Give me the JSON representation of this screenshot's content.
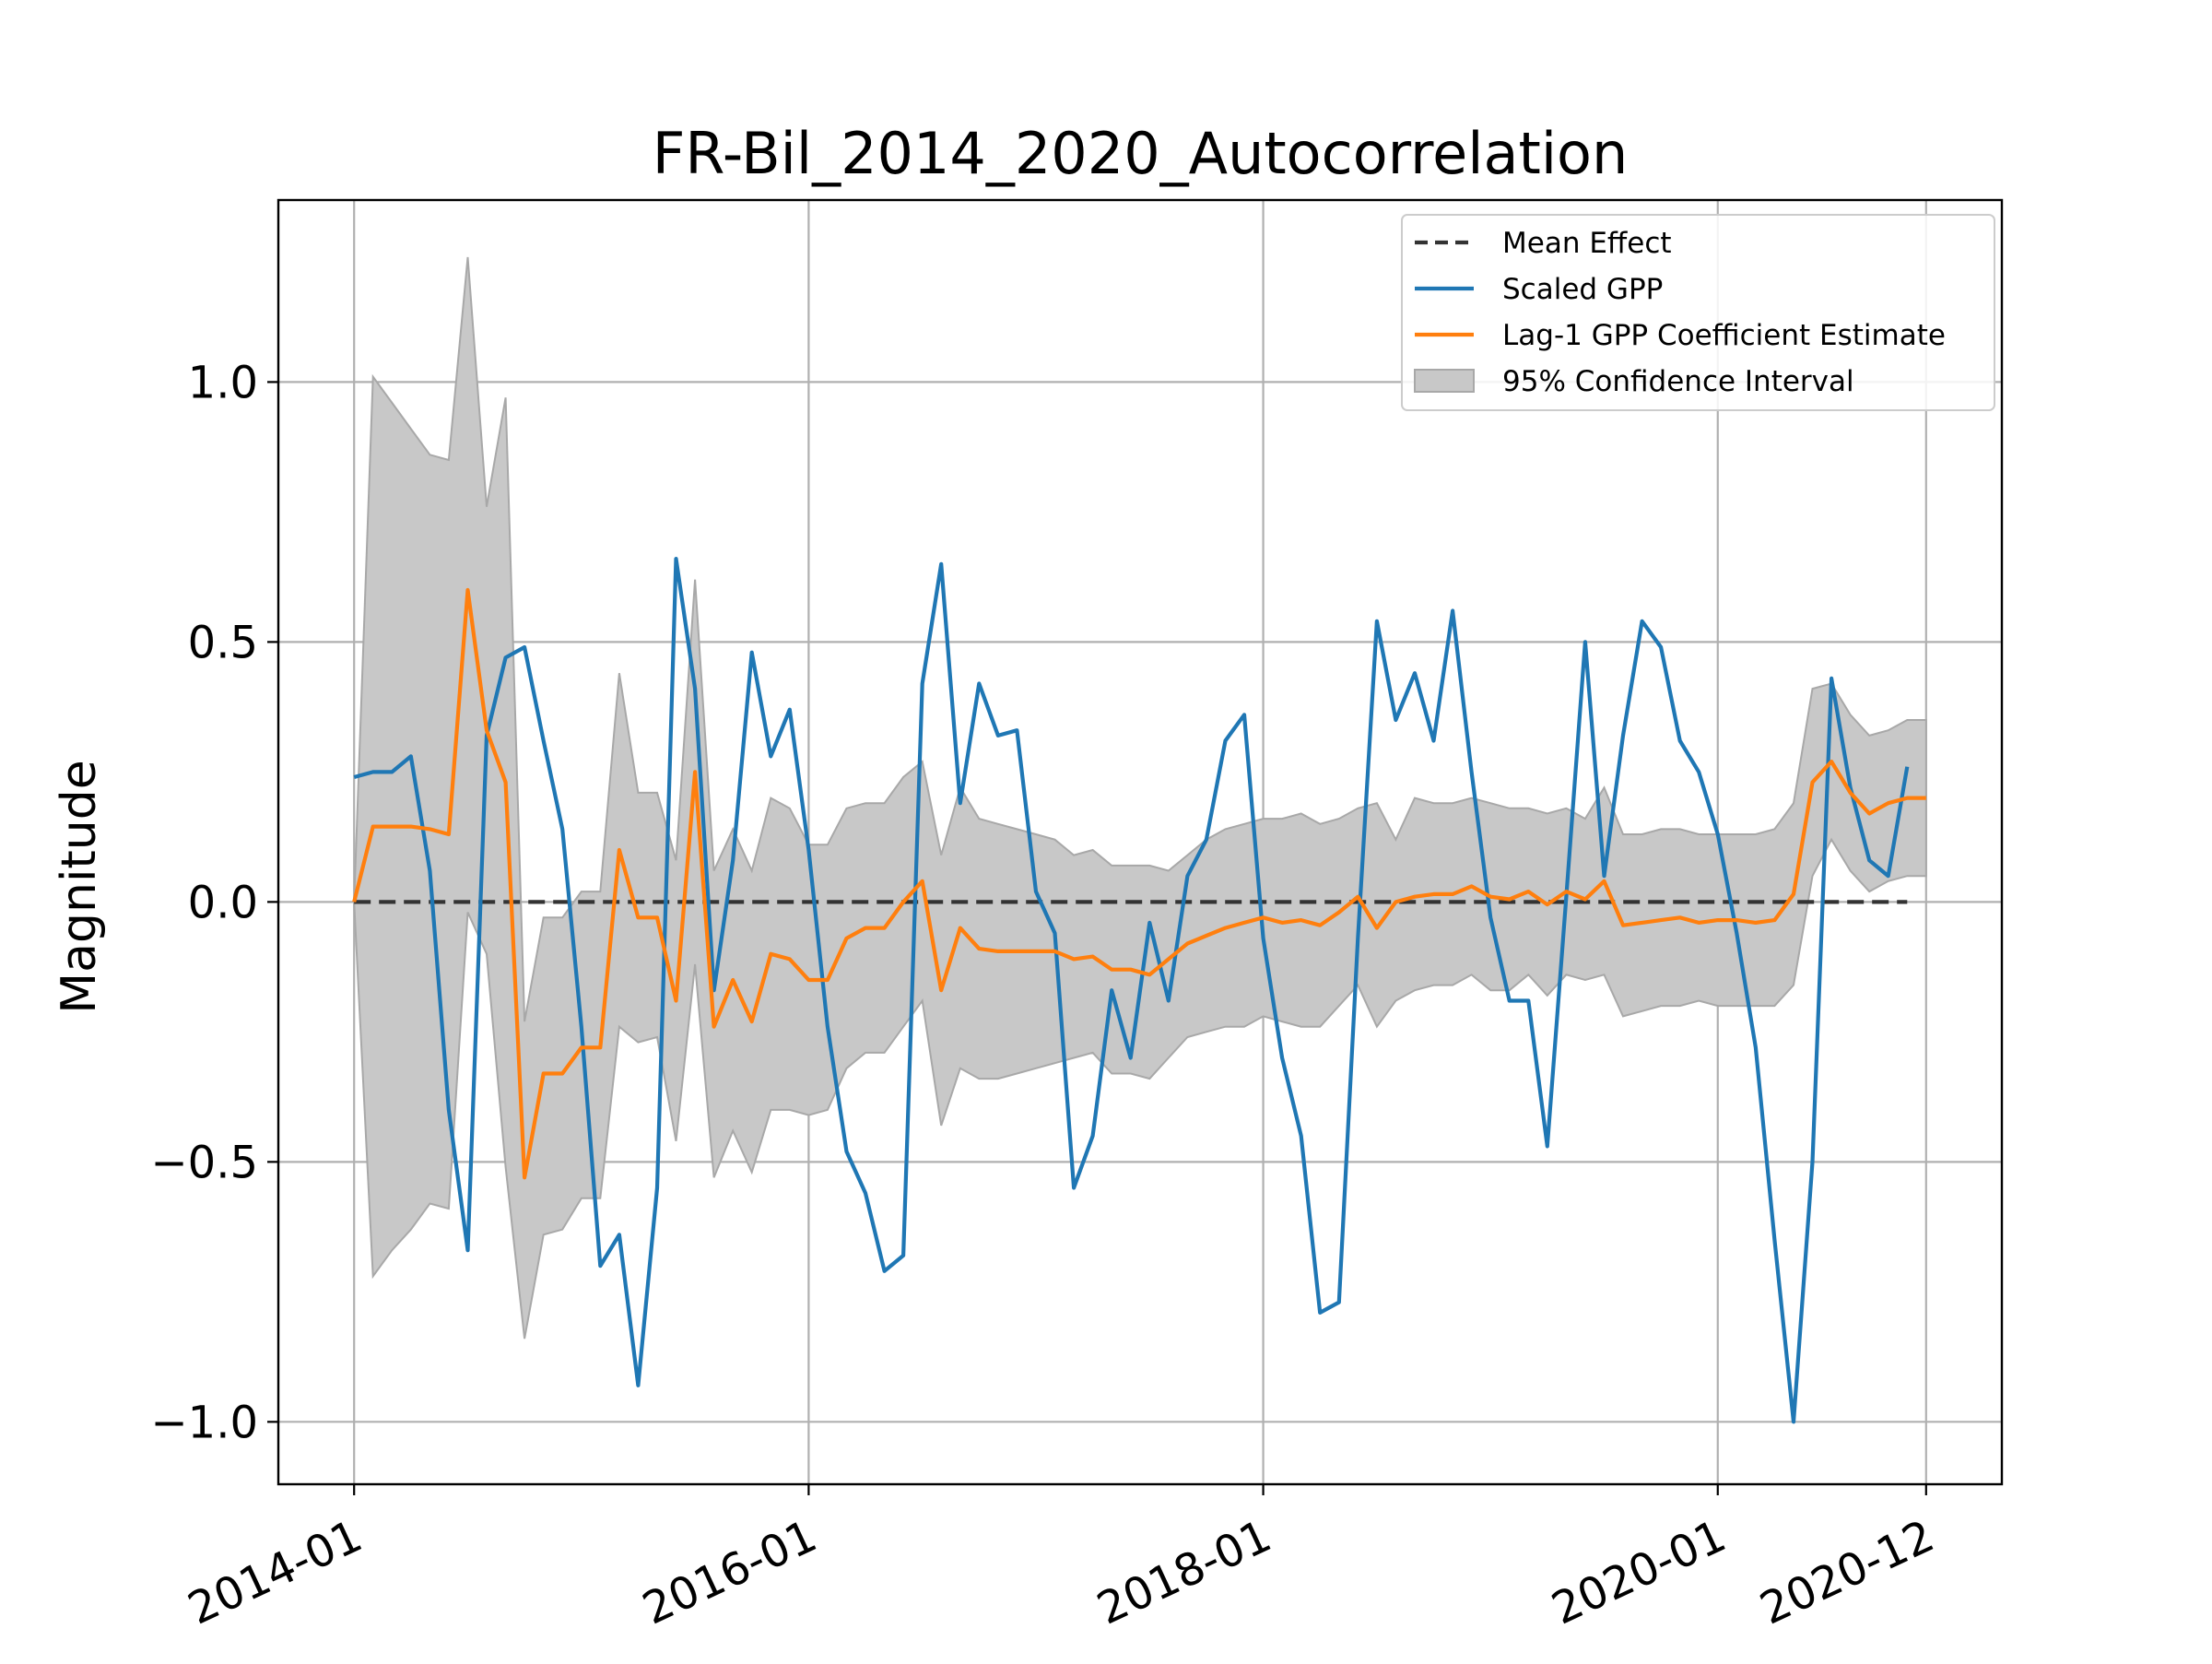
{
  "chart_data": {
    "type": "line",
    "title": "FR-Bil_2014_2020_Autocorrelation",
    "xlabel": "",
    "ylabel": "Magnitude",
    "x_ticks": [
      "2014-01",
      "2016-01",
      "2018-01",
      "2020-01",
      "2020-12"
    ],
    "y_ticks": [
      "1.0",
      "0.5",
      "0.0",
      "−0.5",
      "−1.0"
    ],
    "ylim": [
      -1.12,
      1.35
    ],
    "xlim": [
      "2013-09",
      "2021-04"
    ],
    "grid": true,
    "legend_position": "top-right",
    "colors": {
      "mean": "#333333",
      "gpp": "#1f77b4",
      "coef": "#ff7f0e",
      "ci": "#c8c8c8",
      "ci_edge": "#a8a8a8"
    },
    "series": [
      {
        "name": "Mean Effect",
        "kind": "dashed",
        "x": [
          "2014-01",
          "2020-11"
        ],
        "values": [
          0,
          0
        ]
      },
      {
        "name": "Scaled GPP",
        "kind": "line",
        "x": [
          "2014-01",
          "2014-02",
          "2014-03",
          "2014-04",
          "2014-05",
          "2014-06",
          "2014-07",
          "2014-08",
          "2014-09",
          "2014-10",
          "2014-11",
          "2014-12",
          "2015-01",
          "2015-02",
          "2015-03",
          "2015-04",
          "2015-05",
          "2015-06",
          "2015-07",
          "2015-08",
          "2015-09",
          "2015-10",
          "2015-11",
          "2015-12",
          "2016-01",
          "2016-02",
          "2016-03",
          "2016-04",
          "2016-05",
          "2016-06",
          "2016-07",
          "2016-08",
          "2016-09",
          "2016-10",
          "2016-11",
          "2016-12",
          "2017-01",
          "2017-02",
          "2017-03",
          "2017-04",
          "2017-05",
          "2017-06",
          "2017-07",
          "2017-08",
          "2017-09",
          "2017-10",
          "2017-11",
          "2017-12",
          "2018-01",
          "2018-02",
          "2018-03",
          "2018-04",
          "2018-05",
          "2018-06",
          "2018-07",
          "2018-08",
          "2018-09",
          "2018-10",
          "2018-11",
          "2018-12",
          "2019-01",
          "2019-02",
          "2019-03",
          "2019-04",
          "2019-05",
          "2019-06",
          "2019-07",
          "2019-08",
          "2019-09",
          "2019-10",
          "2019-11",
          "2019-12",
          "2020-01",
          "2020-02",
          "2020-03",
          "2020-04",
          "2020-05",
          "2020-06",
          "2020-07",
          "2020-08",
          "2020-09",
          "2020-10",
          "2020-11"
        ],
        "values": [
          0.24,
          0.25,
          0.25,
          0.28,
          0.06,
          -0.4,
          -0.67,
          0.32,
          0.47,
          0.49,
          0.31,
          0.14,
          -0.24,
          -0.7,
          -0.64,
          -0.93,
          -0.55,
          0.66,
          0.41,
          -0.17,
          0.08,
          0.48,
          0.28,
          0.37,
          0.1,
          -0.24,
          -0.48,
          -0.56,
          -0.71,
          -0.68,
          0.42,
          0.65,
          0.19,
          0.42,
          0.32,
          0.33,
          0.02,
          -0.06,
          -0.55,
          -0.45,
          -0.17,
          -0.3,
          -0.04,
          -0.19,
          0.05,
          0.12,
          0.31,
          0.36,
          -0.07,
          -0.3,
          -0.45,
          -0.79,
          -0.77,
          -0.07,
          0.54,
          0.35,
          0.44,
          0.31,
          0.56,
          0.25,
          -0.03,
          -0.19,
          -0.19,
          -0.47,
          0.01,
          0.5,
          0.05,
          0.32,
          0.54,
          0.49,
          0.31,
          0.25,
          0.13,
          -0.06,
          -0.28,
          -0.65,
          -1.0,
          -0.5,
          0.43,
          0.22,
          0.08,
          0.05,
          0.26
        ]
      },
      {
        "name": "Lag-1 GPP Coefficient Estimate",
        "kind": "line",
        "x": [
          "2014-01",
          "2014-02",
          "2014-03",
          "2014-04",
          "2014-05",
          "2014-06",
          "2014-07",
          "2014-08",
          "2014-09",
          "2014-10",
          "2014-11",
          "2014-12",
          "2015-01",
          "2015-02",
          "2015-03",
          "2015-04",
          "2015-05",
          "2015-06",
          "2015-07",
          "2015-08",
          "2015-09",
          "2015-10",
          "2015-11",
          "2015-12",
          "2016-01",
          "2016-02",
          "2016-03",
          "2016-04",
          "2016-05",
          "2016-06",
          "2016-07",
          "2016-08",
          "2016-09",
          "2016-10",
          "2016-11",
          "2016-12",
          "2017-01",
          "2017-02",
          "2017-03",
          "2017-04",
          "2017-05",
          "2017-06",
          "2017-07",
          "2017-08",
          "2017-09",
          "2017-10",
          "2017-11",
          "2017-12",
          "2018-01",
          "2018-02",
          "2018-03",
          "2018-04",
          "2018-05",
          "2018-06",
          "2018-07",
          "2018-08",
          "2018-09",
          "2018-10",
          "2018-11",
          "2018-12",
          "2019-01",
          "2019-02",
          "2019-03",
          "2019-04",
          "2019-05",
          "2019-06",
          "2019-07",
          "2019-08",
          "2019-09",
          "2019-10",
          "2019-11",
          "2019-12",
          "2020-01",
          "2020-02",
          "2020-03",
          "2020-04",
          "2020-05",
          "2020-06",
          "2020-07",
          "2020-08",
          "2020-09",
          "2020-10",
          "2020-11",
          "2020-12"
        ],
        "values": [
          0.0,
          0.145,
          0.145,
          0.145,
          0.14,
          0.13,
          0.6,
          0.33,
          0.23,
          -0.53,
          -0.33,
          -0.33,
          -0.28,
          -0.28,
          0.1,
          -0.03,
          -0.03,
          -0.19,
          0.25,
          -0.24,
          -0.15,
          -0.23,
          -0.1,
          -0.11,
          -0.15,
          -0.15,
          -0.07,
          -0.05,
          -0.05,
          0.0,
          0.04,
          -0.17,
          -0.05,
          -0.09,
          -0.095,
          -0.095,
          -0.095,
          -0.095,
          -0.11,
          -0.105,
          -0.13,
          -0.13,
          -0.14,
          -0.11,
          -0.08,
          -0.065,
          -0.05,
          -0.04,
          -0.03,
          -0.04,
          -0.035,
          -0.045,
          -0.02,
          0.01,
          -0.05,
          0.0,
          0.01,
          0.015,
          0.015,
          0.03,
          0.01,
          0.005,
          0.02,
          -0.005,
          0.02,
          0.005,
          0.04,
          -0.045,
          -0.04,
          -0.035,
          -0.03,
          -0.04,
          -0.035,
          -0.035,
          -0.04,
          -0.035,
          0.015,
          0.23,
          0.27,
          0.21,
          0.17,
          0.19,
          0.2,
          0.2
        ]
      },
      {
        "name": "95% Confidence Interval",
        "kind": "band",
        "x": [
          "2014-01",
          "2014-02",
          "2014-03",
          "2014-04",
          "2014-05",
          "2014-06",
          "2014-07",
          "2014-08",
          "2014-09",
          "2014-10",
          "2014-11",
          "2014-12",
          "2015-01",
          "2015-02",
          "2015-03",
          "2015-04",
          "2015-05",
          "2015-06",
          "2015-07",
          "2015-08",
          "2015-09",
          "2015-10",
          "2015-11",
          "2015-12",
          "2016-01",
          "2016-02",
          "2016-03",
          "2016-04",
          "2016-05",
          "2016-06",
          "2016-07",
          "2016-08",
          "2016-09",
          "2016-10",
          "2016-11",
          "2016-12",
          "2017-01",
          "2017-02",
          "2017-03",
          "2017-04",
          "2017-05",
          "2017-06",
          "2017-07",
          "2017-08",
          "2017-09",
          "2017-10",
          "2017-11",
          "2017-12",
          "2018-01",
          "2018-02",
          "2018-03",
          "2018-04",
          "2018-05",
          "2018-06",
          "2018-07",
          "2018-08",
          "2018-09",
          "2018-10",
          "2018-11",
          "2018-12",
          "2019-01",
          "2019-02",
          "2019-03",
          "2019-04",
          "2019-05",
          "2019-06",
          "2019-07",
          "2019-08",
          "2019-09",
          "2019-10",
          "2019-11",
          "2019-12",
          "2020-01",
          "2020-02",
          "2020-03",
          "2020-04",
          "2020-05",
          "2020-06",
          "2020-07",
          "2020-08",
          "2020-09",
          "2020-10",
          "2020-11",
          "2020-12"
        ],
        "upper": [
          0.0,
          1.01,
          0.96,
          0.91,
          0.86,
          0.85,
          1.24,
          0.76,
          0.97,
          -0.23,
          -0.03,
          -0.03,
          0.02,
          0.02,
          0.44,
          0.21,
          0.21,
          0.08,
          0.62,
          0.06,
          0.14,
          0.06,
          0.2,
          0.18,
          0.11,
          0.11,
          0.18,
          0.19,
          0.19,
          0.24,
          0.27,
          0.09,
          0.22,
          0.16,
          0.15,
          0.14,
          0.13,
          0.12,
          0.09,
          0.1,
          0.07,
          0.07,
          0.07,
          0.06,
          0.09,
          0.12,
          0.14,
          0.15,
          0.16,
          0.16,
          0.17,
          0.15,
          0.16,
          0.18,
          0.19,
          0.12,
          0.2,
          0.19,
          0.19,
          0.2,
          0.19,
          0.18,
          0.18,
          0.17,
          0.18,
          0.16,
          0.22,
          0.13,
          0.13,
          0.14,
          0.14,
          0.13,
          0.13,
          0.13,
          0.13,
          0.14,
          0.19,
          0.41,
          0.42,
          0.36,
          0.32,
          0.33,
          0.35,
          0.35
        ],
        "lower": [
          0.0,
          -0.72,
          -0.67,
          -0.63,
          -0.58,
          -0.59,
          -0.02,
          -0.1,
          -0.51,
          -0.84,
          -0.64,
          -0.63,
          -0.57,
          -0.57,
          -0.24,
          -0.27,
          -0.26,
          -0.46,
          -0.12,
          -0.53,
          -0.44,
          -0.52,
          -0.4,
          -0.4,
          -0.41,
          -0.4,
          -0.32,
          -0.29,
          -0.29,
          -0.24,
          -0.19,
          -0.43,
          -0.32,
          -0.34,
          -0.34,
          -0.33,
          -0.32,
          -0.31,
          -0.3,
          -0.29,
          -0.33,
          -0.33,
          -0.34,
          -0.3,
          -0.26,
          -0.25,
          -0.24,
          -0.24,
          -0.22,
          -0.23,
          -0.24,
          -0.24,
          -0.2,
          -0.16,
          -0.24,
          -0.19,
          -0.17,
          -0.16,
          -0.16,
          -0.14,
          -0.17,
          -0.17,
          -0.14,
          -0.18,
          -0.14,
          -0.15,
          -0.14,
          -0.22,
          -0.21,
          -0.2,
          -0.2,
          -0.19,
          -0.2,
          -0.2,
          -0.2,
          -0.2,
          -0.16,
          0.05,
          0.12,
          0.06,
          0.02,
          0.04,
          0.05,
          0.05
        ]
      }
    ]
  }
}
